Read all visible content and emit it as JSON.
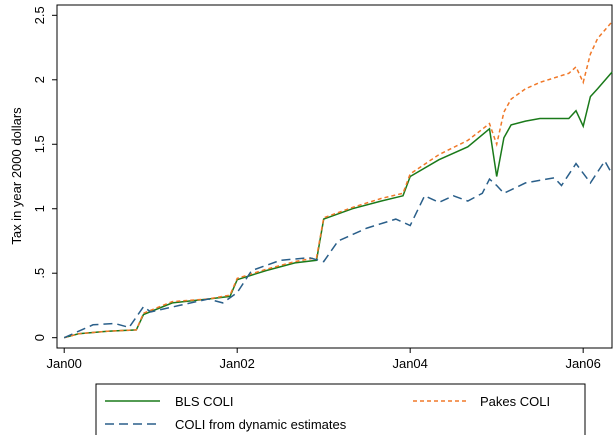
{
  "chart_data": {
    "type": "line",
    "y_label": "Tax in year 2000 dollars",
    "xlim": [
      "1999-12",
      "2006-05"
    ],
    "xticks": [
      {
        "value": "2000-01",
        "label": "Jan00"
      },
      {
        "value": "2002-01",
        "label": "Jan02"
      },
      {
        "value": "2004-01",
        "label": "Jan04"
      },
      {
        "value": "2006-01",
        "label": "Jan06"
      }
    ],
    "ylim": [
      -0.08,
      2.58
    ],
    "yticks": [
      0,
      {
        "value": 0.5,
        "label": ".5"
      },
      1,
      1.5,
      2,
      2.5
    ],
    "grid": false,
    "legend": "bottom",
    "series": [
      {
        "name": "BLS COLI",
        "color": "#1a7a1a",
        "dash": "solid",
        "x": [
          "2000-01",
          "2000-03",
          "2000-07",
          "2000-11",
          "2000-12",
          "2001-04",
          "2001-09",
          "2001-12",
          "2002-01",
          "2002-05",
          "2002-09",
          "2002-12",
          "2003-01",
          "2003-05",
          "2003-09",
          "2003-12",
          "2004-01",
          "2004-05",
          "2004-09",
          "2004-12",
          "2005-01",
          "2005-02",
          "2005-03",
          "2005-05",
          "2005-07",
          "2005-11",
          "2005-12",
          "2006-01",
          "2006-02",
          "2006-03",
          "2006-05"
        ],
        "values": [
          0,
          0.03,
          0.05,
          0.06,
          0.18,
          0.27,
          0.3,
          0.32,
          0.45,
          0.52,
          0.58,
          0.6,
          0.92,
          1.0,
          1.06,
          1.1,
          1.25,
          1.38,
          1.48,
          1.62,
          1.25,
          1.55,
          1.65,
          1.68,
          1.7,
          1.7,
          1.76,
          1.64,
          1.87,
          1.93,
          2.06
        ]
      },
      {
        "name": "Pakes COLI",
        "color": "#f07828",
        "dash": "short",
        "x": [
          "2000-01",
          "2000-03",
          "2000-07",
          "2000-11",
          "2000-12",
          "2001-04",
          "2001-09",
          "2001-12",
          "2002-01",
          "2002-05",
          "2002-09",
          "2002-12",
          "2003-01",
          "2003-05",
          "2003-09",
          "2003-12",
          "2004-01",
          "2004-05",
          "2004-09",
          "2004-12",
          "2005-01",
          "2005-02",
          "2005-03",
          "2005-05",
          "2005-07",
          "2005-11",
          "2005-12",
          "2006-01",
          "2006-02",
          "2006-03",
          "2006-05"
        ],
        "values": [
          0,
          0.03,
          0.05,
          0.06,
          0.19,
          0.28,
          0.3,
          0.33,
          0.46,
          0.53,
          0.59,
          0.62,
          0.93,
          1.01,
          1.08,
          1.12,
          1.27,
          1.42,
          1.53,
          1.66,
          1.5,
          1.75,
          1.85,
          1.93,
          1.98,
          2.05,
          2.1,
          1.98,
          2.2,
          2.32,
          2.45
        ]
      },
      {
        "name": "COLI from dynamic estimates",
        "color": "#2a5f8a",
        "dash": "long",
        "x": [
          "2000-01",
          "2000-05",
          "2000-08",
          "2000-10",
          "2000-12",
          "2001-01",
          "2001-05",
          "2001-09",
          "2001-11",
          "2002-01",
          "2002-03",
          "2002-07",
          "2002-11",
          "2003-01",
          "2003-03",
          "2003-07",
          "2003-11",
          "2004-01",
          "2004-03",
          "2004-05",
          "2004-07",
          "2004-09",
          "2004-11",
          "2004-12",
          "2005-01",
          "2005-02",
          "2005-05",
          "2005-09",
          "2005-10",
          "2005-12",
          "2006-02",
          "2006-04",
          "2006-05"
        ],
        "values": [
          0,
          0.1,
          0.11,
          0.08,
          0.24,
          0.2,
          0.25,
          0.3,
          0.27,
          0.35,
          0.52,
          0.6,
          0.62,
          0.59,
          0.75,
          0.85,
          0.92,
          0.87,
          1.1,
          1.05,
          1.1,
          1.06,
          1.12,
          1.23,
          1.18,
          1.12,
          1.2,
          1.24,
          1.18,
          1.35,
          1.2,
          1.37,
          1.27
        ]
      }
    ]
  }
}
